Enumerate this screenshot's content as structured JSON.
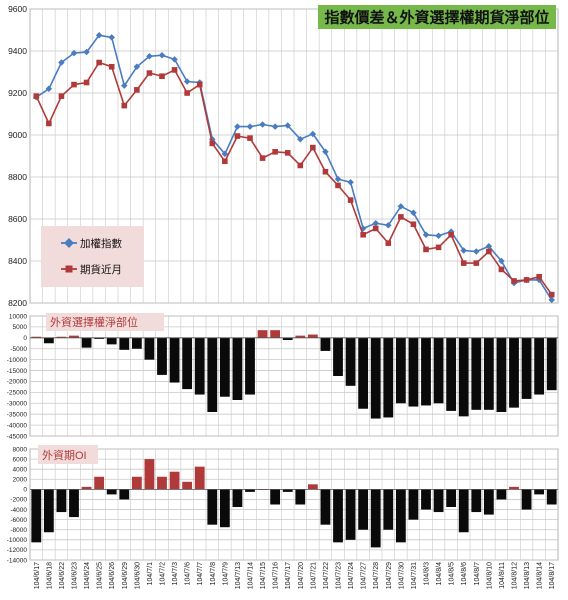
{
  "colors": {
    "index_line": "#4a7cc0",
    "futures_line": "#b03a3a",
    "bar_negative": "#0a0a0a",
    "bar_positive": "#b03a3a",
    "title_bg": "#76b94a",
    "legend_bg": "#f2dcdb",
    "panel_label_bg": "#f2dcdb",
    "panel_label_fg": "#b03a3a",
    "grid": "#c8c8c8"
  },
  "chart_data": [
    {
      "type": "line",
      "title": "指數價差＆外資選擇權期貨淨部位",
      "legend": [
        "加權指數",
        "期貨近月"
      ],
      "legend_placement": "left",
      "grid": true,
      "ylim": [
        8200,
        9600
      ],
      "yticks": [
        8200,
        8400,
        8600,
        8800,
        9000,
        9200,
        9400,
        9600
      ],
      "x": [
        "104/6/17",
        "104/6/18",
        "104/6/22",
        "104/6/23",
        "104/6/24",
        "104/6/25",
        "104/6/26",
        "104/6/29",
        "104/6/30",
        "104/7/1",
        "104/7/2",
        "104/7/3",
        "104/7/6",
        "104/7/7",
        "104/7/8",
        "104/7/9",
        "104/7/13",
        "104/7/14",
        "104/7/15",
        "104/7/16",
        "104/7/17",
        "104/7/20",
        "104/7/21",
        "104/7/22",
        "104/7/23",
        "104/7/24",
        "104/7/27",
        "104/7/28",
        "104/7/29",
        "104/7/30",
        "104/7/31",
        "104/8/3",
        "104/8/4",
        "104/8/5",
        "104/8/6",
        "104/8/7",
        "104/8/10",
        "104/8/11",
        "104/8/12",
        "104/8/13",
        "104/8/14",
        "104/8/17"
      ],
      "series": [
        {
          "name": "加權指數",
          "values": [
            9180,
            9220,
            9345,
            9390,
            9395,
            9475,
            9465,
            9235,
            9325,
            9375,
            9380,
            9360,
            9255,
            9250,
            8980,
            8910,
            9040,
            9040,
            9050,
            9040,
            9045,
            8980,
            9005,
            8920,
            8790,
            8775,
            8555,
            8580,
            8570,
            8660,
            8630,
            8525,
            8520,
            8540,
            8450,
            8445,
            8470,
            8400,
            8295,
            8310,
            8310,
            8215
          ]
        },
        {
          "name": "期貨近月",
          "values": [
            9185,
            9055,
            9185,
            9240,
            9250,
            9345,
            9325,
            9140,
            9215,
            9295,
            9280,
            9310,
            9200,
            9240,
            8960,
            8875,
            8995,
            8985,
            8890,
            8920,
            8915,
            8855,
            8940,
            8825,
            8760,
            8690,
            8525,
            8555,
            8485,
            8610,
            8575,
            8455,
            8465,
            8525,
            8390,
            8390,
            8445,
            8360,
            8305,
            8310,
            8325,
            8240
          ]
        }
      ]
    },
    {
      "type": "bar",
      "title": "外資選擇權淨部位",
      "grid": true,
      "ylim": [
        -45000,
        10000
      ],
      "yticks": [
        10000,
        5000,
        0,
        -5000,
        -10000,
        -15000,
        -20000,
        -25000,
        -30000,
        -35000,
        -40000,
        -45000
      ],
      "values": [
        500,
        -2500,
        500,
        1000,
        -4500,
        -500,
        -3000,
        -5500,
        -5000,
        -10000,
        -17000,
        -20500,
        -23500,
        -26000,
        -34000,
        -27000,
        -28500,
        -26000,
        3500,
        3500,
        -1000,
        1000,
        1500,
        -6000,
        -17500,
        -22000,
        -32500,
        -37000,
        -36500,
        -30000,
        -31500,
        -31000,
        -30000,
        -33500,
        -36000,
        -33000,
        -33000,
        -34000,
        -32000,
        -28000,
        -26000,
        -24000
      ]
    },
    {
      "type": "bar",
      "title": "外資期OI",
      "grid": true,
      "ylim": [
        -14000,
        8000
      ],
      "yticks": [
        8000,
        6000,
        4000,
        2000,
        0,
        -2000,
        -4000,
        -6000,
        -8000,
        -10000,
        -12000,
        -14000
      ],
      "x_labels": [
        "104/6/17",
        "104/6/18",
        "104/6/22",
        "104/6/23",
        "104/6/24",
        "104/6/25",
        "104/6/26",
        "104/6/29",
        "104/6/30",
        "104/7/1",
        "104/7/2",
        "104/7/3",
        "104/7/6",
        "104/7/7",
        "104/7/8",
        "104/7/9",
        "104/7/13",
        "104/7/14",
        "104/7/15",
        "104/7/16",
        "104/7/17",
        "104/7/20",
        "104/7/21",
        "104/7/22",
        "104/7/23",
        "104/7/24",
        "104/7/27",
        "104/7/28",
        "104/7/29",
        "104/7/30",
        "104/7/31",
        "104/8/3",
        "104/8/4",
        "104/8/5",
        "104/8/6",
        "104/8/7",
        "104/8/10",
        "104/8/11",
        "104/8/12",
        "104/8/13",
        "104/8/14",
        "104/8/17"
      ],
      "values": [
        -10500,
        -8500,
        -4500,
        -5500,
        500,
        2500,
        -1000,
        -2000,
        2500,
        6000,
        2500,
        3500,
        1500,
        4500,
        -7000,
        -7500,
        -3500,
        -500,
        0,
        -3000,
        -500,
        -3000,
        1000,
        -7000,
        -10500,
        -10000,
        -8000,
        -11500,
        -8000,
        -10500,
        -6000,
        -4000,
        -4500,
        -3500,
        -8500,
        -4500,
        -5000,
        -2000,
        500,
        -4000,
        -1000,
        -3000
      ]
    }
  ]
}
